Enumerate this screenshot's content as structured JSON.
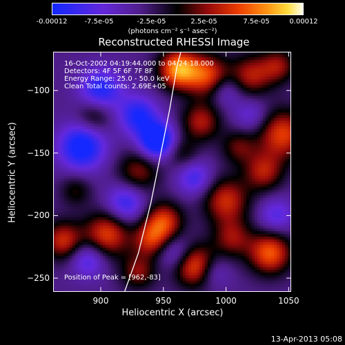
{
  "chart_data": {
    "type": "heatmap",
    "title": "Reconstructed RHESSI Image",
    "xlabel": "Heliocentric X (arcsec)",
    "ylabel": "Heliocentric Y (arcsec)",
    "xlim": [
      862,
      1052
    ],
    "ylim": [
      -261,
      -69
    ],
    "x_ticks": [
      900,
      950,
      1000,
      1050
    ],
    "y_ticks": [
      -100,
      -150,
      -200,
      -250
    ],
    "colorbar": {
      "ticks": [
        "-0.00012",
        "-7.5e-05",
        "-2.5e-05",
        "2.5e-05",
        "7.5e-05",
        "0.00012"
      ],
      "tick_values": [
        -0.00012,
        -7.5e-05,
        -2.5e-05,
        2.5e-05,
        7.5e-05,
        0.00012
      ],
      "units": "(photons cm⁻² s⁻¹ asec⁻²)",
      "range": [
        -0.00012,
        0.00012
      ],
      "colormap": "blue-purple-black-red-orange-yellow-white"
    },
    "annotations": [
      "16-Oct-2002 04:19:44.000 to 04:24:18.000",
      "Detectors: 4F 5F 6F 7F 8F",
      "Energy Range: 25.0 - 50.0 keV",
      "Clean    Total counts: 2.69E+05",
      "Position of Peak = [962,-83]"
    ],
    "peak": {
      "x": 962,
      "y": -83
    },
    "limb_curve": [
      [
        919,
        -261
      ],
      [
        930,
        -230
      ],
      [
        940,
        -190
      ],
      [
        948,
        -150
      ],
      [
        955,
        -115
      ],
      [
        961,
        -80
      ],
      [
        964,
        -69
      ]
    ],
    "sources": [
      {
        "x": 962,
        "y": -83,
        "r": 11,
        "v": 0.00012
      },
      {
        "x": 985,
        "y": -88,
        "r": 12,
        "v": 9e-05
      },
      {
        "x": 1020,
        "y": -88,
        "r": 12,
        "v": 7e-05
      },
      {
        "x": 1042,
        "y": -80,
        "r": 10,
        "v": 6e-05
      },
      {
        "x": 1045,
        "y": -135,
        "r": 14,
        "v": 9e-05
      },
      {
        "x": 1030,
        "y": -165,
        "r": 11,
        "v": 7e-05
      },
      {
        "x": 1035,
        "y": -230,
        "r": 12,
        "v": 0.0001
      },
      {
        "x": 1000,
        "y": -188,
        "r": 13,
        "v": 8e-05
      },
      {
        "x": 1005,
        "y": -218,
        "r": 11,
        "v": 6e-05
      },
      {
        "x": 980,
        "y": -125,
        "r": 11,
        "v": 7e-05
      },
      {
        "x": 975,
        "y": -240,
        "r": 12,
        "v": 0.0001
      },
      {
        "x": 950,
        "y": -205,
        "r": 11,
        "v": 9e-05
      },
      {
        "x": 940,
        "y": -220,
        "r": 10,
        "v": 7e-05
      },
      {
        "x": 930,
        "y": -245,
        "r": 10,
        "v": 6e-05
      },
      {
        "x": 905,
        "y": -215,
        "r": 13,
        "v": 9e-05
      },
      {
        "x": 870,
        "y": -220,
        "r": 11,
        "v": 8e-05
      },
      {
        "x": 930,
        "y": -165,
        "r": 12,
        "v": 6e-05
      },
      {
        "x": 895,
        "y": -120,
        "r": 10,
        "v": 5e-05
      },
      {
        "x": 1010,
        "y": -145,
        "r": 10,
        "v": 5e-05
      },
      {
        "x": 965,
        "y": -150,
        "r": 9,
        "v": 4e-05
      },
      {
        "x": 880,
        "y": -180,
        "r": 9,
        "v": 4e-05
      },
      {
        "x": 900,
        "y": -100,
        "r": 12,
        "v": -8e-05
      },
      {
        "x": 885,
        "y": -145,
        "r": 13,
        "v": -0.0001
      },
      {
        "x": 930,
        "y": -120,
        "r": 11,
        "v": -8e-05
      },
      {
        "x": 945,
        "y": -140,
        "r": 10,
        "v": -0.00012
      },
      {
        "x": 920,
        "y": -190,
        "r": 11,
        "v": -7e-05
      },
      {
        "x": 975,
        "y": -170,
        "r": 10,
        "v": -6e-05
      },
      {
        "x": 890,
        "y": -235,
        "r": 10,
        "v": -6e-05
      },
      {
        "x": 960,
        "y": -230,
        "r": 10,
        "v": -5e-05
      },
      {
        "x": 1020,
        "y": -120,
        "r": 10,
        "v": -4e-05
      },
      {
        "x": 1040,
        "y": -200,
        "r": 10,
        "v": -5e-05
      },
      {
        "x": 990,
        "y": -245,
        "r": 9,
        "v": -4e-05
      },
      {
        "x": 1000,
        "y": -100,
        "r": 9,
        "v": -4e-05
      }
    ]
  },
  "footer": {
    "timestamp": "13-Apr-2013 05:08"
  }
}
